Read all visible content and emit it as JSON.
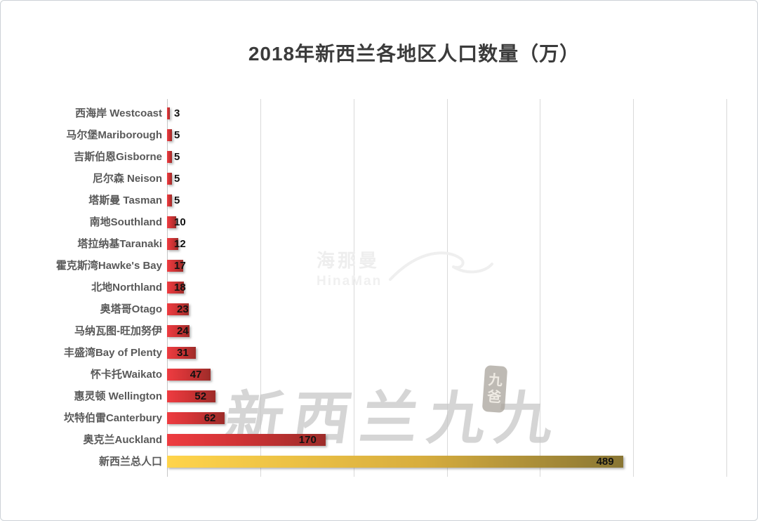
{
  "title": "2018年新西兰各地区人口数量（万）",
  "watermarks": {
    "logo_cn": "海那曼",
    "logo_en": "HinaMan",
    "calligraphy": "新西兰九九",
    "seal_top": "九",
    "seal_bottom": "爸"
  },
  "colors": {
    "bar_red_start": "#ee3c41",
    "bar_red_end": "#9d2c29",
    "bar_gold_start": "#ffd44b",
    "bar_gold_end": "#897634",
    "gridline": "#d9d9d9",
    "category_label": "#595959",
    "value_label": "#111111",
    "title_text": "#3b3b3b"
  },
  "chart_data": {
    "type": "bar",
    "orientation": "horizontal",
    "title": "2018年新西兰各地区人口数量（万）",
    "xlabel": "",
    "ylabel": "",
    "categories": [
      "西海岸 Westcoast",
      "马尔堡Mariborough",
      "吉斯伯恩Gisborne",
      "尼尔森 Neison",
      "塔斯曼 Tasman",
      "南地Southland",
      "塔拉纳基Taranaki",
      "霍克斯湾Hawke's Bay",
      "北地Northland",
      "奥塔哥Otago",
      "马纳瓦图-旺加努伊",
      "丰盛湾Bay of Plenty",
      "怀卡托Waikato",
      "惠灵顿 Wellington",
      "坎特伯雷Canterbury",
      "奥克兰Auckland",
      "新西兰总人口"
    ],
    "values": [
      3,
      5,
      5,
      5,
      5,
      10,
      12,
      17,
      18,
      23,
      24,
      31,
      47,
      52,
      62,
      170,
      489
    ],
    "bar_colors": [
      "red",
      "red",
      "red",
      "red",
      "red",
      "red",
      "red",
      "red",
      "red",
      "red",
      "red",
      "red",
      "red",
      "red",
      "red",
      "red",
      "gold"
    ],
    "xlim": [
      0,
      600
    ],
    "gridline_interval": 100,
    "grid": true,
    "legend": false,
    "value_labels": true
  }
}
